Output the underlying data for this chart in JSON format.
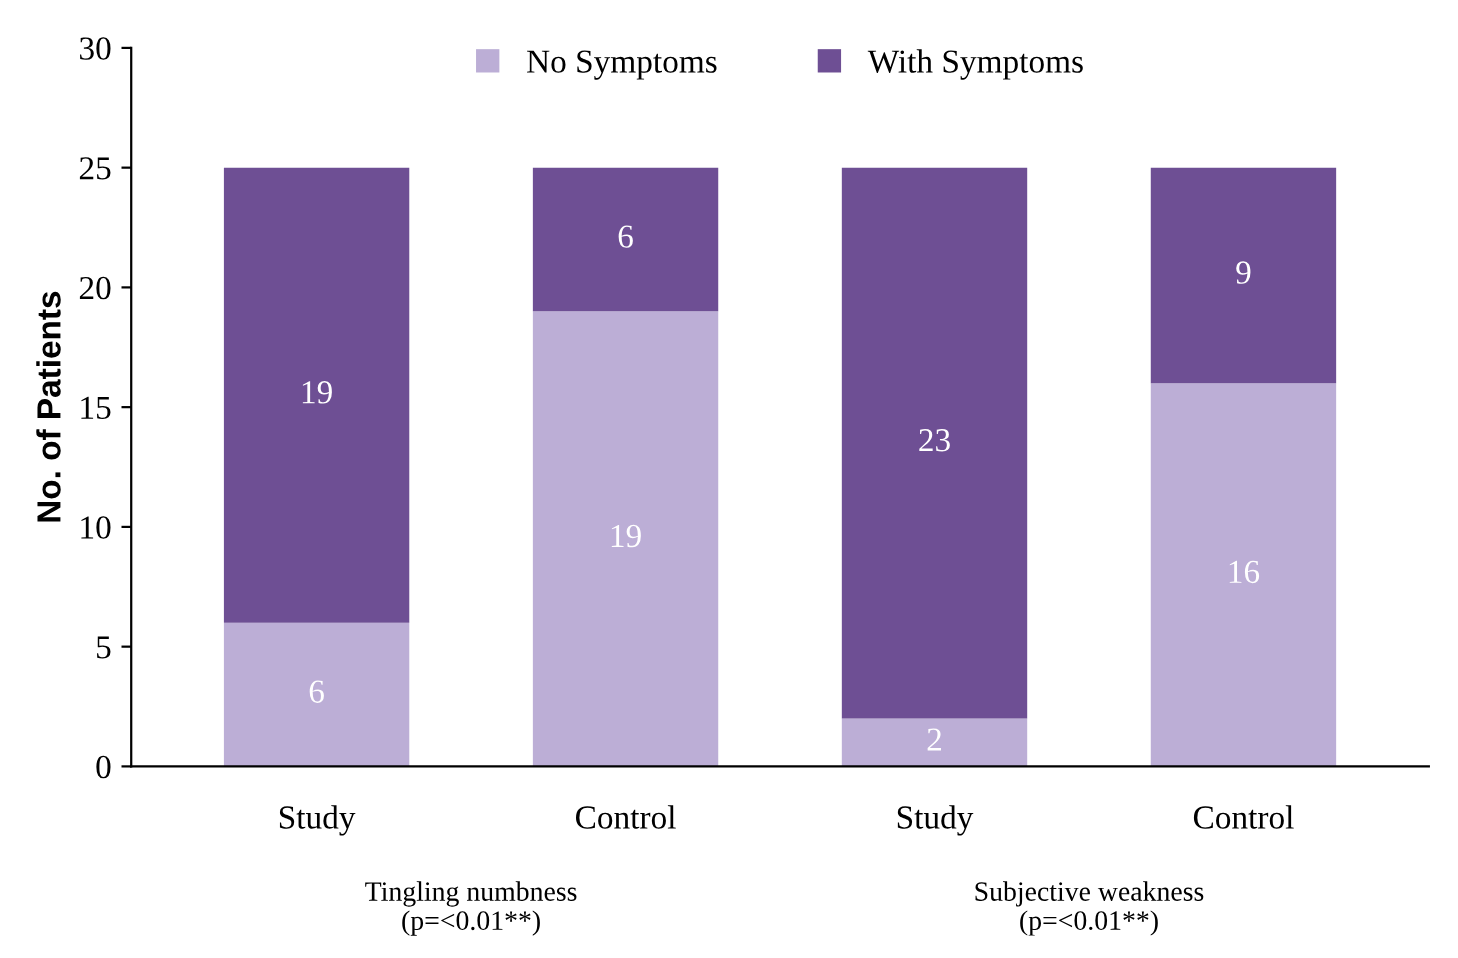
{
  "chart_data": {
    "type": "bar",
    "stacked": true,
    "ylabel": "No. of Patients",
    "categories": [
      "Study",
      "Control",
      "Study",
      "Control"
    ],
    "series": [
      {
        "name": "No Symptoms",
        "color": "#bcaed6",
        "values": [
          6,
          19,
          2,
          16
        ]
      },
      {
        "name": "With Symptoms",
        "color": "#6e4f94",
        "values": [
          19,
          6,
          23,
          9
        ]
      }
    ],
    "ylim": [
      0,
      30
    ],
    "yticks": [
      0,
      5,
      10,
      15,
      20,
      25,
      30
    ],
    "data_labels": true,
    "legend": "top",
    "grid": false,
    "annotations": [
      "Tingling numbness\n(p=<0.01**)",
      "Subjective weakness\n(p=<0.01**)"
    ]
  }
}
